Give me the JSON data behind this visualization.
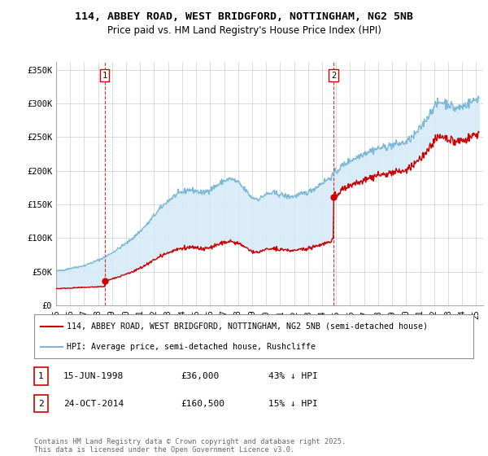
{
  "title_line1": "114, ABBEY ROAD, WEST BRIDGFORD, NOTTINGHAM, NG2 5NB",
  "title_line2": "Price paid vs. HM Land Registry's House Price Index (HPI)",
  "ylabel_ticks": [
    "£0",
    "£50K",
    "£100K",
    "£150K",
    "£200K",
    "£250K",
    "£300K",
    "£350K"
  ],
  "ytick_vals": [
    0,
    50000,
    100000,
    150000,
    200000,
    250000,
    300000,
    350000
  ],
  "ylim": [
    0,
    362000
  ],
  "xlim_start": 1995.0,
  "xlim_end": 2025.5,
  "purchase1_x": 1998.46,
  "purchase1_y": 36000,
  "purchase2_x": 2014.81,
  "purchase2_y": 160500,
  "hpi_color": "#7bb8d4",
  "hpi_fill_color": "#d6eaf8",
  "price_color": "#cc0000",
  "vline_color": "#cc0000",
  "background_color": "#ffffff",
  "grid_color": "#cccccc",
  "legend_label_price": "114, ABBEY ROAD, WEST BRIDGFORD, NOTTINGHAM, NG2 5NB (semi-detached house)",
  "legend_label_hpi": "HPI: Average price, semi-detached house, Rushcliffe",
  "annotation1_label": "1",
  "annotation2_label": "2",
  "table_row1": [
    "1",
    "15-JUN-1998",
    "£36,000",
    "43% ↓ HPI"
  ],
  "table_row2": [
    "2",
    "24-OCT-2014",
    "£160,500",
    "15% ↓ HPI"
  ],
  "footnote": "Contains HM Land Registry data © Crown copyright and database right 2025.\nThis data is licensed under the Open Government Licence v3.0."
}
